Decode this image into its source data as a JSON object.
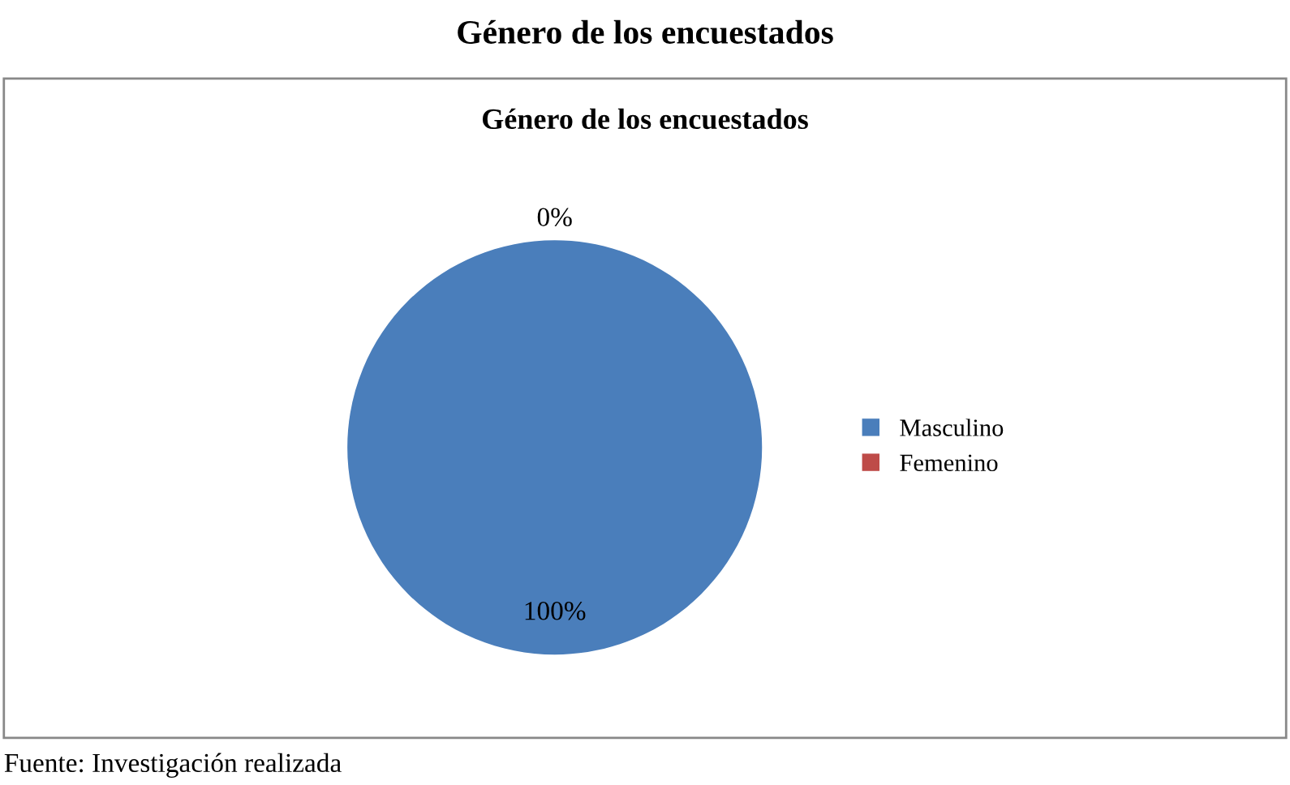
{
  "chart_data": {
    "type": "pie",
    "title": "Género de los encuestados",
    "subtitle": "Género de los encuestados",
    "categories": [
      "Masculino",
      "Femenino"
    ],
    "values": [
      100,
      0
    ],
    "colors": [
      "#4a7ebb",
      "#be4b48"
    ],
    "value_labels": [
      "100%",
      "0%"
    ],
    "legend": "right",
    "annotations": [
      "Fuente: Investigación realizada"
    ]
  }
}
